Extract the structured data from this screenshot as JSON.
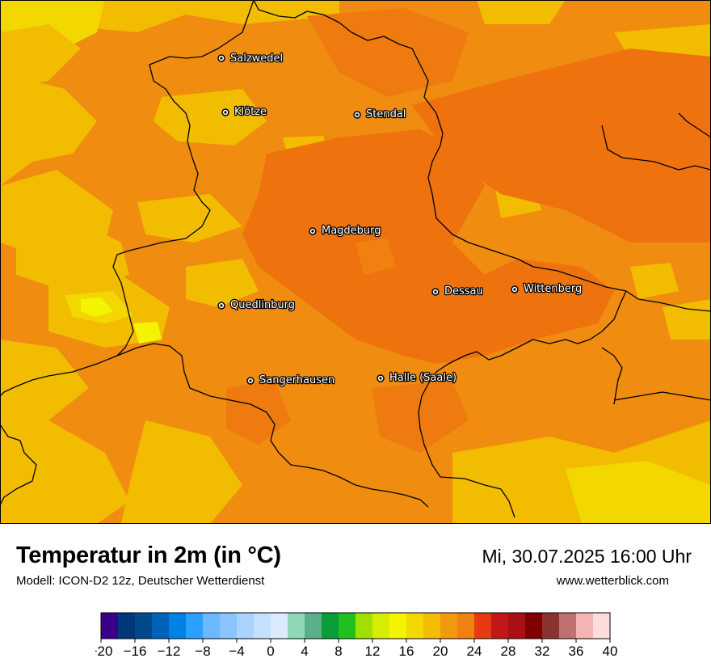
{
  "header": {
    "title": "Temperatur in 2m (in °C)",
    "model": "Modell: ICON-D2 12z, Deutscher Wetterdienst",
    "datetime": "Mi, 30.07.2025 16:00 Uhr",
    "website": "www.wetterblick.com"
  },
  "map": {
    "region": "Sachsen-Anhalt",
    "temperature_range_shown_c": [
      16,
      26
    ],
    "cities": [
      {
        "name": "Salzwedel"
      },
      {
        "name": "Klötze"
      },
      {
        "name": "Stendal"
      },
      {
        "name": "Magdeburg"
      },
      {
        "name": "Dessau"
      },
      {
        "name": "Wittenberg"
      },
      {
        "name": "Quedlinburg"
      },
      {
        "name": "Sangerhausen"
      },
      {
        "name": "Halle (Saale)"
      }
    ]
  },
  "colorbar": {
    "min": -20,
    "max": 40,
    "step": 2,
    "tick_labels": [
      "−20",
      "−16",
      "−12",
      "−8",
      "−4",
      "0",
      "4",
      "8",
      "12",
      "16",
      "20",
      "24",
      "28",
      "32",
      "36",
      "40"
    ],
    "colors": [
      "#3a0088",
      "#00387a",
      "#004a8c",
      "#0062b8",
      "#0082e4",
      "#2aa0ff",
      "#6cb8ff",
      "#8cc4ff",
      "#a8d4ff",
      "#c4e0ff",
      "#dceaff",
      "#8ed8b8",
      "#5ab088",
      "#0a9e3a",
      "#20c020",
      "#a0e000",
      "#d6ec00",
      "#f4f400",
      "#f2d800",
      "#f2bc00",
      "#f09a10",
      "#f08010",
      "#e83a10",
      "#c01818",
      "#a81014",
      "#800000",
      "#8a3232",
      "#c07070",
      "#f4b4b4",
      "#ffdcdc"
    ]
  }
}
